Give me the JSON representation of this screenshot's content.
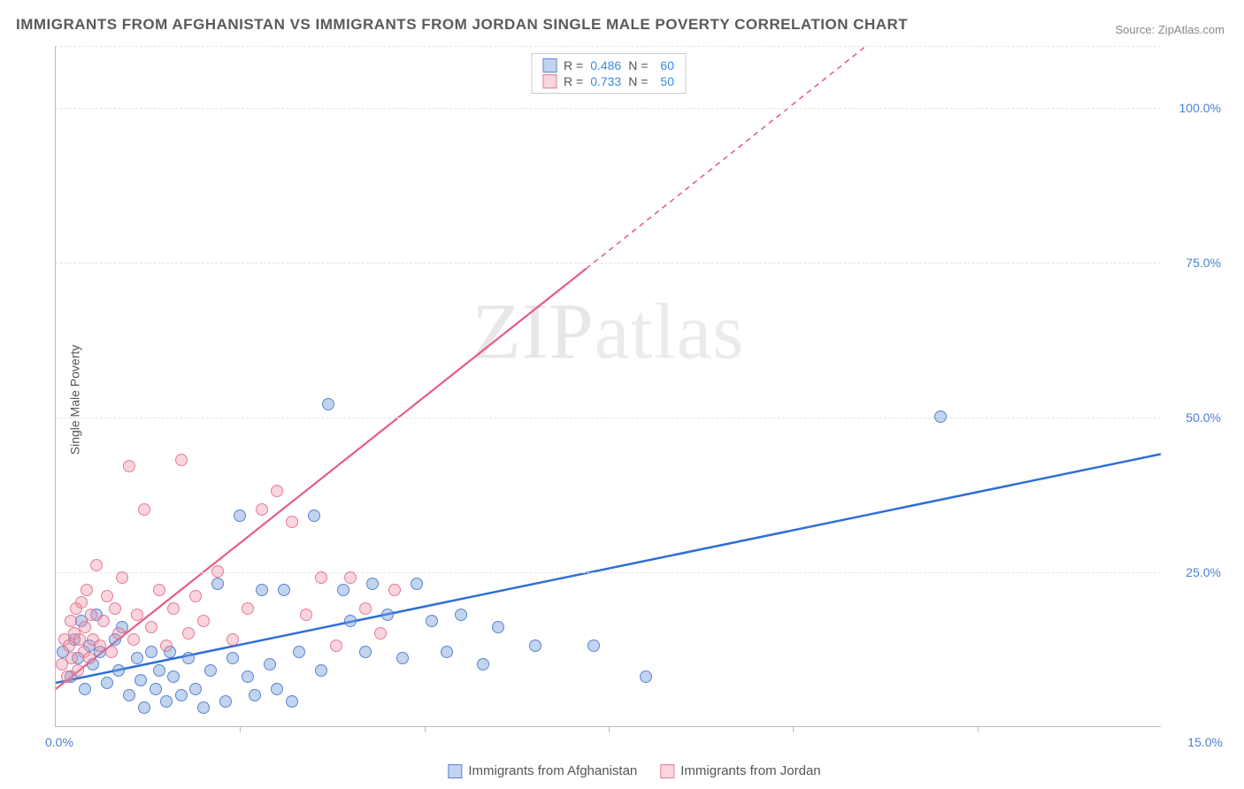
{
  "title": "IMMIGRANTS FROM AFGHANISTAN VS IMMIGRANTS FROM JORDAN SINGLE MALE POVERTY CORRELATION CHART",
  "source": {
    "prefix": "Source: ",
    "name": "ZipAtlas.com"
  },
  "watermark": {
    "part1": "ZIP",
    "part2": "atlas"
  },
  "chart": {
    "type": "scatter",
    "ylabel": "Single Male Poverty",
    "xlim": [
      0,
      15.0
    ],
    "ylim": [
      0,
      110.0
    ],
    "xticks_labels": {
      "start": "0.0%",
      "end": "15.0%"
    },
    "xticks_minor": [
      2.5,
      5.0,
      7.5,
      10.0,
      12.5
    ],
    "yticks": [
      {
        "v": 25.0,
        "label": "25.0%"
      },
      {
        "v": 50.0,
        "label": "50.0%"
      },
      {
        "v": 75.0,
        "label": "75.0%"
      },
      {
        "v": 100.0,
        "label": "100.0%"
      },
      {
        "v": 110.0,
        "label": ""
      }
    ],
    "grid_color": "#e3e3e3",
    "background_color": "#ffffff",
    "series": [
      {
        "name": "Immigrants from Afghanistan",
        "color_fill": "rgba(120,160,220,0.45)",
        "color_stroke": "rgba(70,120,200,0.85)",
        "r": "0.486",
        "n": "60",
        "trend": {
          "x1": 0,
          "y1": 7,
          "x2": 15,
          "y2": 44,
          "stroke": "#2d6fd6",
          "width": 2.5
        },
        "points": [
          [
            0.1,
            12
          ],
          [
            0.2,
            8
          ],
          [
            0.25,
            14
          ],
          [
            0.3,
            11
          ],
          [
            0.35,
            17
          ],
          [
            0.4,
            6
          ],
          [
            0.45,
            13
          ],
          [
            0.5,
            10
          ],
          [
            0.55,
            18
          ],
          [
            0.6,
            12
          ],
          [
            0.7,
            7
          ],
          [
            0.8,
            14
          ],
          [
            0.85,
            9
          ],
          [
            0.9,
            16
          ],
          [
            1.0,
            5
          ],
          [
            1.1,
            11
          ],
          [
            1.15,
            7.5
          ],
          [
            1.2,
            3
          ],
          [
            1.3,
            12
          ],
          [
            1.35,
            6
          ],
          [
            1.4,
            9
          ],
          [
            1.5,
            4
          ],
          [
            1.55,
            12
          ],
          [
            1.6,
            8
          ],
          [
            1.7,
            5
          ],
          [
            1.8,
            11
          ],
          [
            1.9,
            6
          ],
          [
            2.0,
            3
          ],
          [
            2.1,
            9
          ],
          [
            2.2,
            23
          ],
          [
            2.3,
            4
          ],
          [
            2.4,
            11
          ],
          [
            2.5,
            34
          ],
          [
            2.6,
            8
          ],
          [
            2.7,
            5
          ],
          [
            2.8,
            22
          ],
          [
            2.9,
            10
          ],
          [
            3.0,
            6
          ],
          [
            3.1,
            22
          ],
          [
            3.2,
            4
          ],
          [
            3.3,
            12
          ],
          [
            3.5,
            34
          ],
          [
            3.6,
            9
          ],
          [
            3.7,
            52
          ],
          [
            3.9,
            22
          ],
          [
            4.0,
            17
          ],
          [
            4.2,
            12
          ],
          [
            4.3,
            23
          ],
          [
            4.5,
            18
          ],
          [
            4.7,
            11
          ],
          [
            4.9,
            23
          ],
          [
            5.1,
            17
          ],
          [
            5.3,
            12
          ],
          [
            5.5,
            18
          ],
          [
            5.8,
            10
          ],
          [
            6.0,
            16
          ],
          [
            6.5,
            13
          ],
          [
            7.3,
            13
          ],
          [
            8.0,
            8
          ],
          [
            12.0,
            50
          ]
        ]
      },
      {
        "name": "Immigrants from Jordan",
        "color_fill": "rgba(240,150,170,0.40)",
        "color_stroke": "rgba(225,100,130,0.8)",
        "r": "0.733",
        "n": "50",
        "trend": {
          "x1": 0,
          "y1": 6,
          "x2": 7.2,
          "y2": 74,
          "extend_to_x": 11.0,
          "extend_to_y": 110,
          "stroke": "#e85b82",
          "width": 2.2
        },
        "points": [
          [
            0.08,
            10
          ],
          [
            0.12,
            14
          ],
          [
            0.15,
            8
          ],
          [
            0.18,
            13
          ],
          [
            0.2,
            17
          ],
          [
            0.22,
            11
          ],
          [
            0.25,
            15
          ],
          [
            0.28,
            19
          ],
          [
            0.3,
            9
          ],
          [
            0.32,
            14
          ],
          [
            0.35,
            20
          ],
          [
            0.38,
            12
          ],
          [
            0.4,
            16
          ],
          [
            0.42,
            22
          ],
          [
            0.45,
            11
          ],
          [
            0.48,
            18
          ],
          [
            0.5,
            14
          ],
          [
            0.55,
            26
          ],
          [
            0.6,
            13
          ],
          [
            0.65,
            17
          ],
          [
            0.7,
            21
          ],
          [
            0.75,
            12
          ],
          [
            0.8,
            19
          ],
          [
            0.85,
            15
          ],
          [
            0.9,
            24
          ],
          [
            1.0,
            42
          ],
          [
            1.05,
            14
          ],
          [
            1.1,
            18
          ],
          [
            1.2,
            35
          ],
          [
            1.3,
            16
          ],
          [
            1.4,
            22
          ],
          [
            1.5,
            13
          ],
          [
            1.6,
            19
          ],
          [
            1.7,
            43
          ],
          [
            1.8,
            15
          ],
          [
            1.9,
            21
          ],
          [
            2.0,
            17
          ],
          [
            2.2,
            25
          ],
          [
            2.4,
            14
          ],
          [
            2.6,
            19
          ],
          [
            2.8,
            35
          ],
          [
            3.0,
            38
          ],
          [
            3.2,
            33
          ],
          [
            3.4,
            18
          ],
          [
            3.6,
            24
          ],
          [
            3.8,
            13
          ],
          [
            4.0,
            24
          ],
          [
            4.2,
            19
          ],
          [
            4.4,
            15
          ],
          [
            4.6,
            22
          ]
        ]
      }
    ]
  },
  "legend": [
    {
      "swatch": "a",
      "label": "Immigrants from Afghanistan"
    },
    {
      "swatch": "b",
      "label": "Immigrants from Jordan"
    }
  ],
  "statsbox": {
    "rows": [
      {
        "swatch": "a",
        "r_lbl": "R =",
        "r": "0.486",
        "n_lbl": "N =",
        "n": "60"
      },
      {
        "swatch": "b",
        "r_lbl": "R =",
        "r": "0.733",
        "n_lbl": "N =",
        "n": "50"
      }
    ]
  }
}
